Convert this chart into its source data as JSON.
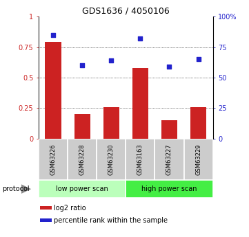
{
  "title": "GDS1636 / 4050106",
  "categories": [
    "GSM63226",
    "GSM63228",
    "GSM63230",
    "GSM63163",
    "GSM63227",
    "GSM63229"
  ],
  "log2_ratio": [
    0.79,
    0.2,
    0.26,
    0.58,
    0.15,
    0.26
  ],
  "percentile_rank": [
    85,
    60,
    64,
    82,
    59,
    65
  ],
  "bar_color": "#cc2222",
  "dot_color": "#2222cc",
  "yticks_left": [
    0,
    0.25,
    0.5,
    0.75,
    1.0
  ],
  "ytick_labels_left": [
    "0",
    "0.25",
    "0.5",
    "0.75",
    "1"
  ],
  "yticks_right": [
    0,
    25,
    50,
    75,
    100
  ],
  "ytick_labels_right": [
    "0",
    "25",
    "50",
    "75",
    "100%"
  ],
  "protocol_groups": [
    {
      "label": "low power scan",
      "indices": [
        0,
        1,
        2
      ],
      "color": "#bbffbb"
    },
    {
      "label": "high power scan",
      "indices": [
        3,
        4,
        5
      ],
      "color": "#44ee44"
    }
  ],
  "protocol_label": "protocol",
  "legend_red": "log2 ratio",
  "legend_blue": "percentile rank within the sample",
  "background_color": "#ffffff",
  "cat_bg_color": "#cccccc",
  "title_fontsize": 9,
  "tick_fontsize": 7,
  "cat_fontsize": 6,
  "prot_fontsize": 7,
  "leg_fontsize": 7
}
